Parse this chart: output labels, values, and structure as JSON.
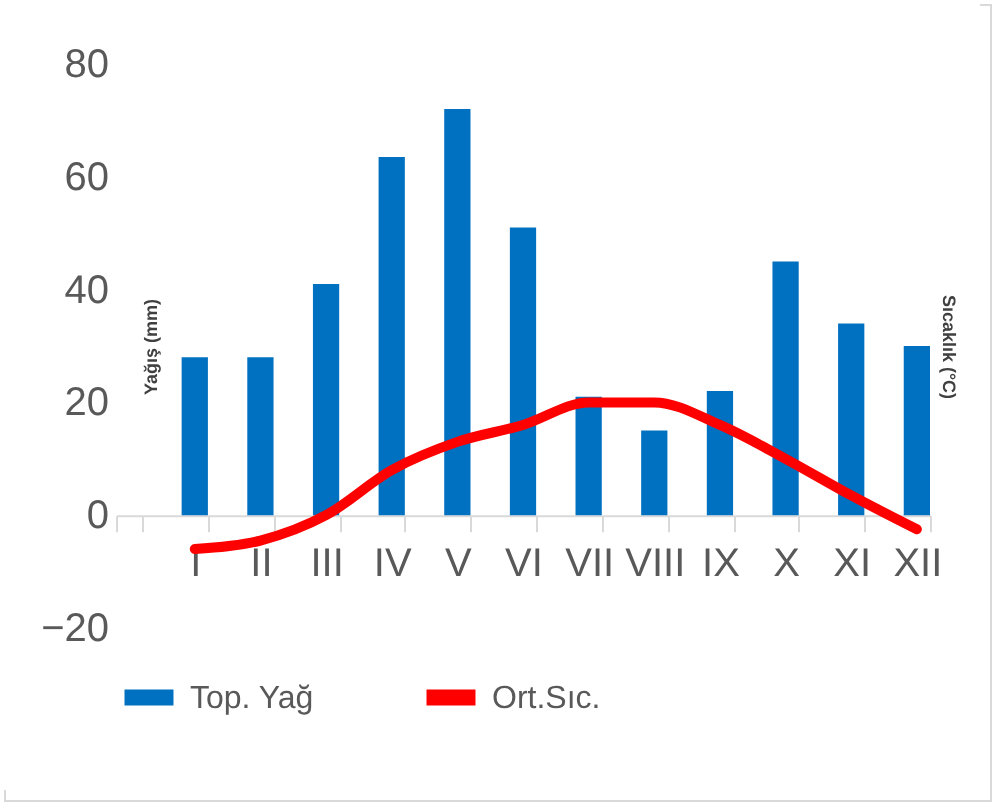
{
  "chart_data": {
    "type": "bar",
    "ylabel": "Yağış (mm)",
    "y2label": "Sıcaklık (°C)",
    "categories": [
      null,
      "I",
      "II",
      "III",
      "IV",
      "V",
      "VI",
      "VII",
      "VIII",
      "IX",
      "X",
      "XI",
      "XII"
    ],
    "series": [
      {
        "name": "Top. Yağ",
        "color": "#0070c0",
        "values": [
          null,
          28,
          28,
          41,
          63.5,
          72,
          51,
          21,
          15,
          22,
          45,
          34,
          30
        ]
      },
      {
        "name": "Ort.Sıc.",
        "type": "line",
        "color": "#ff0000",
        "values": [
          null,
          -6,
          -4.5,
          0,
          8,
          13,
          16,
          20,
          20,
          16,
          10,
          3.5,
          -2.5
        ]
      }
    ],
    "ylim": [
      -20,
      80
    ],
    "yticks": [
      -20,
      0,
      20,
      40,
      60,
      80
    ],
    "grid": false,
    "legend": "bottom"
  }
}
